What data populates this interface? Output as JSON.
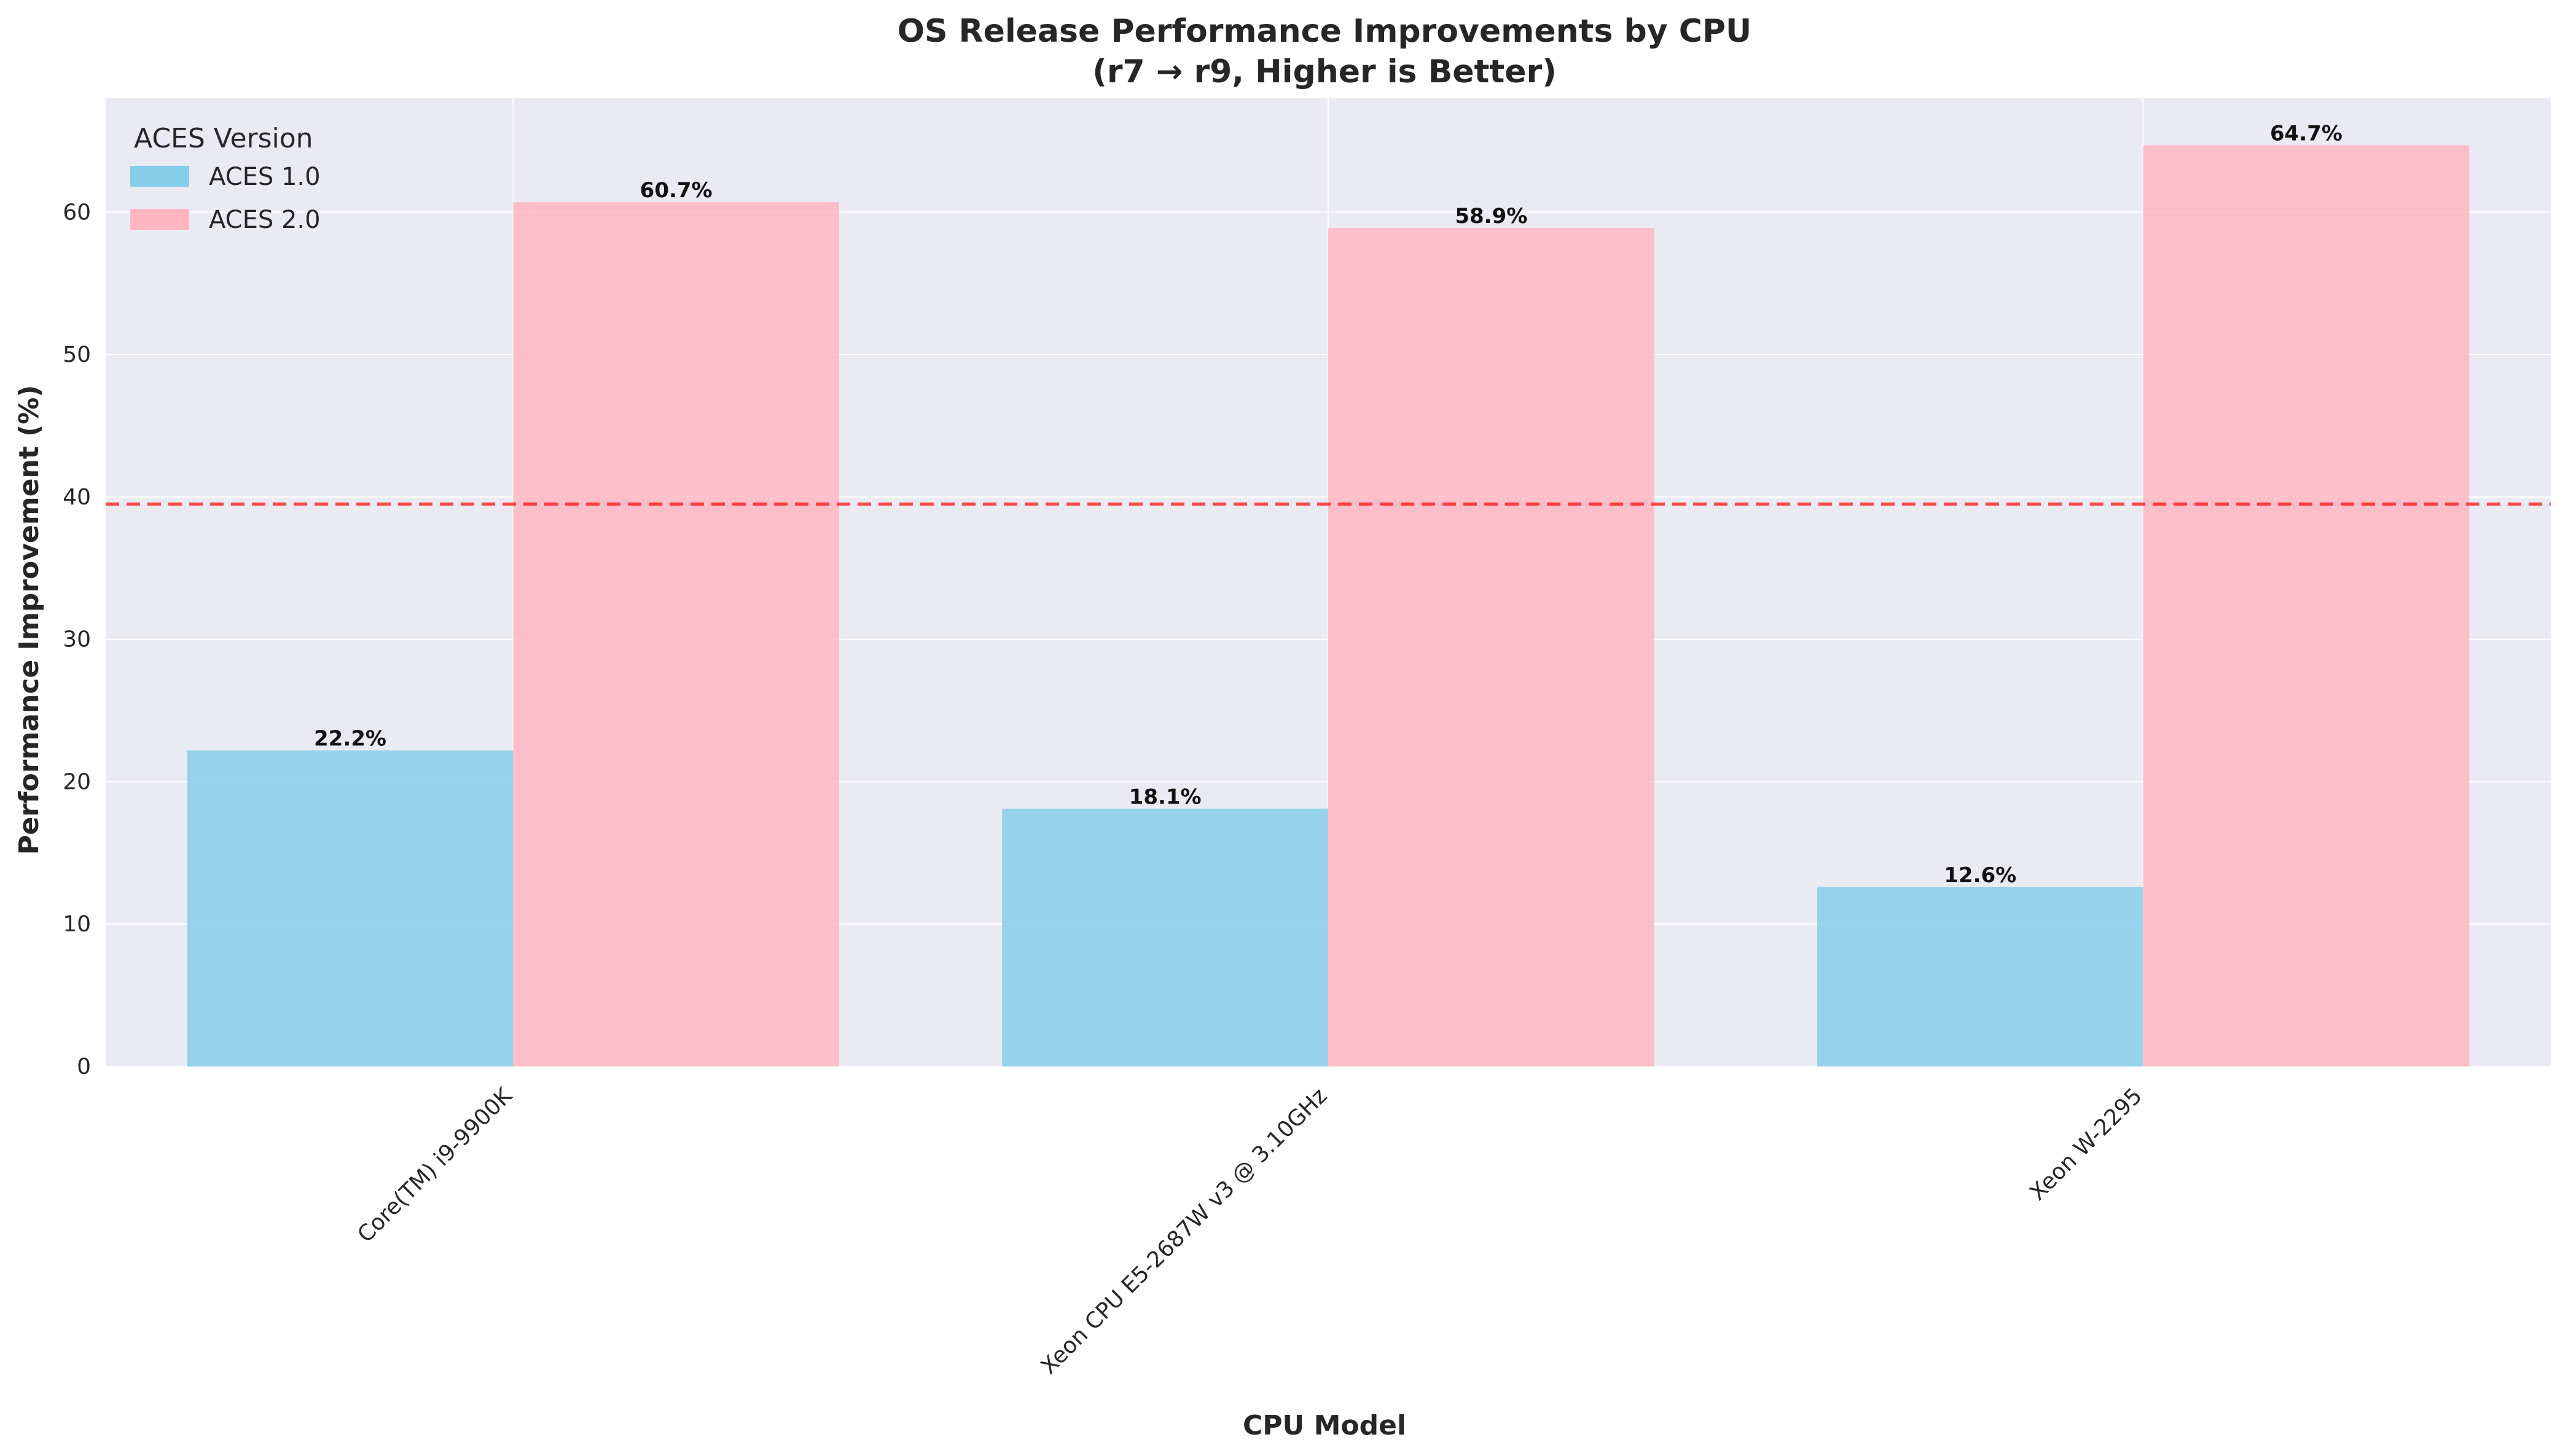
{
  "chart_data": {
    "type": "bar",
    "title": "OS Release Performance Improvements by CPU",
    "subtitle": "(r7 → r9, Higher is Better)",
    "xlabel": "CPU Model",
    "ylabel": "Performance Improvement (%)",
    "categories": [
      "Core(TM) i9-9900K",
      "Xeon CPU E5-2687W v3 @ 3.10GHz",
      "Xeon W-2295"
    ],
    "series": [
      {
        "name": "ACES 1.0",
        "values": [
          22.2,
          18.1,
          12.6
        ],
        "color": "#87CEEB"
      },
      {
        "name": "ACES 2.0",
        "values": [
          60.7,
          58.9,
          64.7
        ],
        "color": "#FFB6C1"
      }
    ],
    "data_labels": [
      [
        "22.2%",
        "18.1%",
        "12.6%"
      ],
      [
        "60.7%",
        "58.9%",
        "64.7%"
      ]
    ],
    "reference_line": {
      "value": 39.5,
      "color": "#FF0000",
      "style": "dashed"
    },
    "ylim": [
      0,
      68
    ],
    "yticks": [
      0,
      10,
      20,
      30,
      40,
      50,
      60
    ],
    "ytick_labels": [
      "0",
      "10",
      "20",
      "30",
      "40",
      "50",
      "60"
    ],
    "grid": true,
    "legend": {
      "title": "ACES Version",
      "position": "top-left"
    },
    "colors": {
      "background": "#EAEAF2",
      "grid": "#FFFFFF"
    }
  }
}
